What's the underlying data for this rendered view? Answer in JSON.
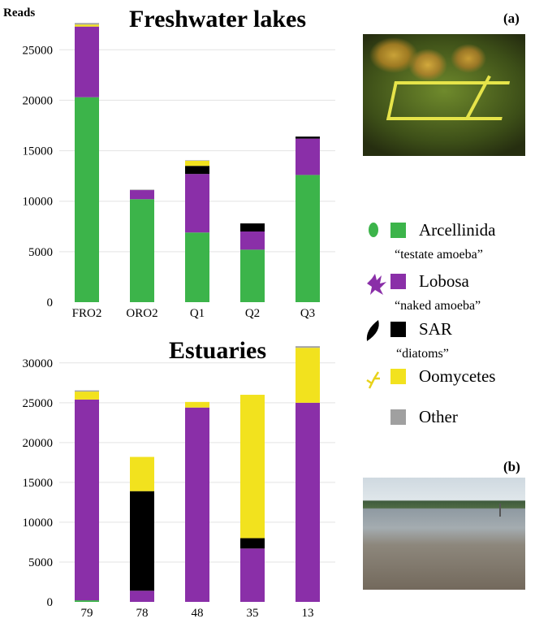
{
  "chart_data": [
    {
      "type": "bar",
      "stacked": true,
      "title": "Freshwater lakes",
      "panel": "(a)",
      "ylabel": "Reads",
      "ylim": [
        0,
        28000
      ],
      "yticks": [
        0,
        5000,
        10000,
        15000,
        20000,
        25000
      ],
      "grid": true,
      "categories": [
        "FRO2",
        "ORO2",
        "Q1",
        "Q2",
        "Q3"
      ],
      "series": [
        {
          "name": "Arcellinida",
          "color": "#3cb44a",
          "values": [
            20300,
            10200,
            6900,
            5200,
            12600
          ]
        },
        {
          "name": "Lobosa",
          "color": "#8a2fa8",
          "values": [
            7000,
            900,
            5800,
            1800,
            3600
          ]
        },
        {
          "name": "SAR",
          "color": "#000000",
          "values": [
            0,
            0,
            800,
            800,
            200
          ]
        },
        {
          "name": "Oomycetes",
          "color": "#f2e21e",
          "values": [
            200,
            0,
            500,
            0,
            0
          ]
        },
        {
          "name": "Other",
          "color": "#a0a0a0",
          "values": [
            150,
            50,
            50,
            0,
            0
          ]
        }
      ]
    },
    {
      "type": "bar",
      "stacked": true,
      "title": "Estuaries",
      "panel": "(b)",
      "ylabel": "",
      "ylim": [
        0,
        31000
      ],
      "yticks": [
        0,
        5000,
        10000,
        15000,
        20000,
        25000,
        30000
      ],
      "grid": true,
      "categories": [
        "79",
        "78",
        "48",
        "35",
        "13"
      ],
      "series": [
        {
          "name": "Arcellinida",
          "color": "#3cb44a",
          "values": [
            200,
            0,
            0,
            0,
            0
          ]
        },
        {
          "name": "Lobosa",
          "color": "#8a2fa8",
          "values": [
            25200,
            1400,
            24400,
            6700,
            25000
          ]
        },
        {
          "name": "SAR",
          "color": "#000000",
          "values": [
            0,
            12500,
            0,
            1300,
            0
          ]
        },
        {
          "name": "Oomycetes",
          "color": "#f2e21e",
          "values": [
            1000,
            4300,
            700,
            18000,
            6900
          ]
        },
        {
          "name": "Other",
          "color": "#a0a0a0",
          "values": [
            150,
            0,
            0,
            0,
            200
          ]
        }
      ]
    }
  ],
  "legend": [
    {
      "name": "Arcellinida",
      "note": "“testate amoeba”",
      "color": "#3cb44a",
      "icon": "testate-amoeba-icon"
    },
    {
      "name": "Lobosa",
      "note": "“naked amoeba”",
      "color": "#8a2fa8",
      "icon": "naked-amoeba-icon"
    },
    {
      "name": "SAR",
      "note": "“diatoms”",
      "color": "#000000",
      "icon": "diatom-icon"
    },
    {
      "name": "Oomycetes",
      "note": "",
      "color": "#f2e21e",
      "icon": "oomycete-icon"
    },
    {
      "name": "Other",
      "note": "",
      "color": "#a0a0a0",
      "icon": ""
    }
  ],
  "photos": [
    {
      "panel": "(a)",
      "icon": "lake-quadrat-photo"
    },
    {
      "panel": "(b)",
      "icon": "estuary-shore-photo"
    }
  ]
}
